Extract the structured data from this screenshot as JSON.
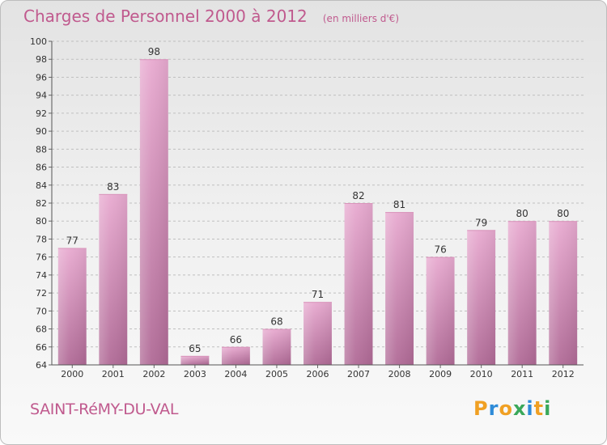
{
  "title": "Charges de Personnel 2000 à 2012",
  "unit_note": "(en milliers d'€)",
  "town": "SAINT-RéMY-DU-VAL",
  "logo": {
    "text": "Proxiti",
    "letter_colors": [
      "#f0a023",
      "#2e8bd8",
      "#f0a023",
      "#3aa85a",
      "#2e8bd8",
      "#f0a023",
      "#3aa85a"
    ]
  },
  "colors": {
    "bar_top": "#e8aad0",
    "bar_bottom": "#b06a96",
    "title": "#c05a8e",
    "text": "#333333",
    "grid": "#bfbfbf"
  },
  "chart_data": {
    "type": "bar",
    "title": "Charges de Personnel 2000 à 2012",
    "subtitle": "(en milliers d'€)",
    "categories": [
      "2000",
      "2001",
      "2002",
      "2003",
      "2004",
      "2005",
      "2006",
      "2007",
      "2008",
      "2009",
      "2010",
      "2011",
      "2012"
    ],
    "values": [
      77,
      83,
      98,
      65,
      66,
      68,
      71,
      82,
      81,
      76,
      79,
      80,
      80
    ],
    "ylim": [
      64,
      100
    ],
    "yticks": [
      64,
      66,
      68,
      70,
      72,
      74,
      76,
      78,
      80,
      82,
      84,
      86,
      88,
      90,
      92,
      94,
      96,
      98,
      100
    ],
    "grid": true,
    "data_labels": true,
    "xlabel": "",
    "ylabel": ""
  }
}
